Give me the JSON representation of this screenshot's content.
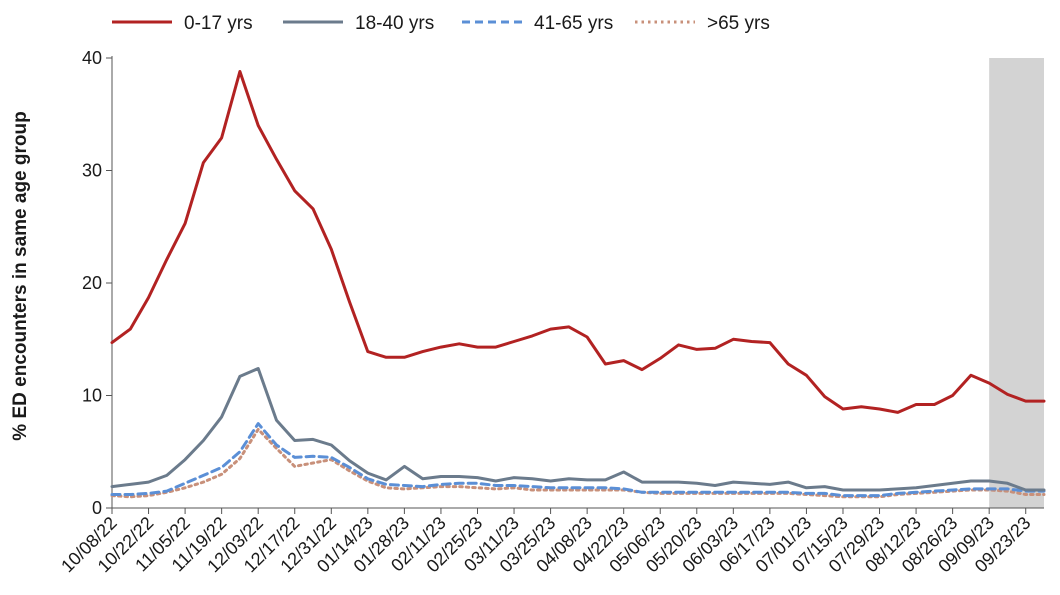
{
  "chart_data": {
    "type": "line",
    "title": "",
    "xlabel": "",
    "ylabel": "% ED encounters in same age group",
    "ylim": [
      0,
      40
    ],
    "yticks": [
      0,
      10,
      20,
      30,
      40
    ],
    "grid": false,
    "legend_position": "top",
    "shaded_region": {
      "start": "09/09/23",
      "end": "09/30/23",
      "color": "#d3d3d3"
    },
    "x": [
      "10/08/22",
      "10/15/22",
      "10/22/22",
      "10/29/22",
      "11/05/22",
      "11/12/22",
      "11/19/22",
      "11/26/22",
      "12/03/22",
      "12/10/22",
      "12/17/22",
      "12/24/22",
      "12/31/22",
      "01/07/23",
      "01/14/23",
      "01/21/23",
      "01/28/23",
      "02/04/23",
      "02/11/23",
      "02/18/23",
      "02/25/23",
      "03/04/23",
      "03/11/23",
      "03/18/23",
      "03/25/23",
      "04/01/23",
      "04/08/23",
      "04/15/23",
      "04/22/23",
      "04/29/23",
      "05/06/23",
      "05/13/23",
      "05/20/23",
      "05/27/23",
      "06/03/23",
      "06/10/23",
      "06/17/23",
      "06/24/23",
      "07/01/23",
      "07/08/23",
      "07/15/23",
      "07/22/23",
      "07/29/23",
      "08/05/23",
      "08/12/23",
      "08/19/23",
      "08/26/23",
      "09/02/23",
      "09/09/23",
      "09/16/23",
      "09/23/23",
      "09/30/23"
    ],
    "xtick_labels": [
      "10/08/22",
      "10/22/22",
      "11/05/22",
      "11/19/22",
      "12/03/22",
      "12/17/22",
      "12/31/22",
      "01/14/23",
      "01/28/23",
      "02/11/23",
      "02/25/23",
      "03/11/23",
      "03/25/23",
      "04/08/23",
      "04/22/23",
      "05/06/23",
      "05/20/23",
      "06/03/23",
      "06/17/23",
      "07/01/23",
      "07/15/23",
      "07/29/23",
      "08/12/23",
      "08/26/23",
      "09/09/23",
      "09/23/23"
    ],
    "series": [
      {
        "name": "0-17 yrs",
        "color": "#b22222",
        "dash": "solid",
        "values": [
          14.7,
          15.9,
          18.7,
          22.1,
          25.3,
          30.7,
          32.9,
          38.8,
          34.0,
          31.0,
          28.2,
          26.6,
          23.0,
          18.3,
          13.9,
          13.4,
          13.4,
          13.9,
          14.3,
          14.6,
          14.3,
          14.3,
          14.8,
          15.3,
          15.9,
          16.1,
          15.2,
          12.8,
          13.1,
          12.3,
          13.3,
          14.5,
          14.1,
          14.2,
          15.0,
          14.8,
          14.7,
          12.8,
          11.8,
          9.9,
          8.8,
          9.0,
          8.8,
          8.5,
          9.2,
          9.2,
          10.0,
          11.8,
          11.1,
          10.1,
          9.5,
          9.5
        ]
      },
      {
        "name": "18-40 yrs",
        "color": "#6b7b8c",
        "dash": "solid",
        "values": [
          1.9,
          2.1,
          2.3,
          2.9,
          4.3,
          6.0,
          8.1,
          11.7,
          12.4,
          7.8,
          6.0,
          6.1,
          5.6,
          4.2,
          3.1,
          2.5,
          3.7,
          2.6,
          2.8,
          2.8,
          2.7,
          2.4,
          2.7,
          2.6,
          2.4,
          2.6,
          2.5,
          2.5,
          3.2,
          2.3,
          2.3,
          2.3,
          2.2,
          2.0,
          2.3,
          2.2,
          2.1,
          2.3,
          1.8,
          1.9,
          1.6,
          1.6,
          1.6,
          1.7,
          1.8,
          2.0,
          2.2,
          2.4,
          2.4,
          2.2,
          1.6,
          1.6
        ]
      },
      {
        "name": "41-65 yrs",
        "color": "#5b8fd6",
        "dash": "dashed",
        "values": [
          1.2,
          1.2,
          1.3,
          1.5,
          2.2,
          2.9,
          3.6,
          5.0,
          7.5,
          5.6,
          4.5,
          4.6,
          4.5,
          3.6,
          2.6,
          2.1,
          2.0,
          1.9,
          2.1,
          2.2,
          2.2,
          2.0,
          2.0,
          1.9,
          1.8,
          1.8,
          1.8,
          1.8,
          1.7,
          1.4,
          1.4,
          1.4,
          1.4,
          1.4,
          1.4,
          1.4,
          1.4,
          1.4,
          1.3,
          1.3,
          1.1,
          1.1,
          1.1,
          1.3,
          1.4,
          1.5,
          1.6,
          1.7,
          1.7,
          1.7,
          1.5,
          1.5
        ]
      },
      {
        "name": ">65 yrs",
        "color": "#c8907a",
        "dash": "dotted",
        "values": [
          1.1,
          1.0,
          1.1,
          1.4,
          1.8,
          2.3,
          3.0,
          4.4,
          7.0,
          5.3,
          3.7,
          4.0,
          4.3,
          3.3,
          2.4,
          1.8,
          1.7,
          1.8,
          1.9,
          1.9,
          1.8,
          1.7,
          1.8,
          1.6,
          1.6,
          1.6,
          1.6,
          1.6,
          1.6,
          1.4,
          1.3,
          1.3,
          1.3,
          1.3,
          1.3,
          1.3,
          1.3,
          1.3,
          1.2,
          1.1,
          1.0,
          1.0,
          1.0,
          1.2,
          1.3,
          1.4,
          1.5,
          1.6,
          1.6,
          1.5,
          1.2,
          1.2
        ]
      }
    ]
  }
}
